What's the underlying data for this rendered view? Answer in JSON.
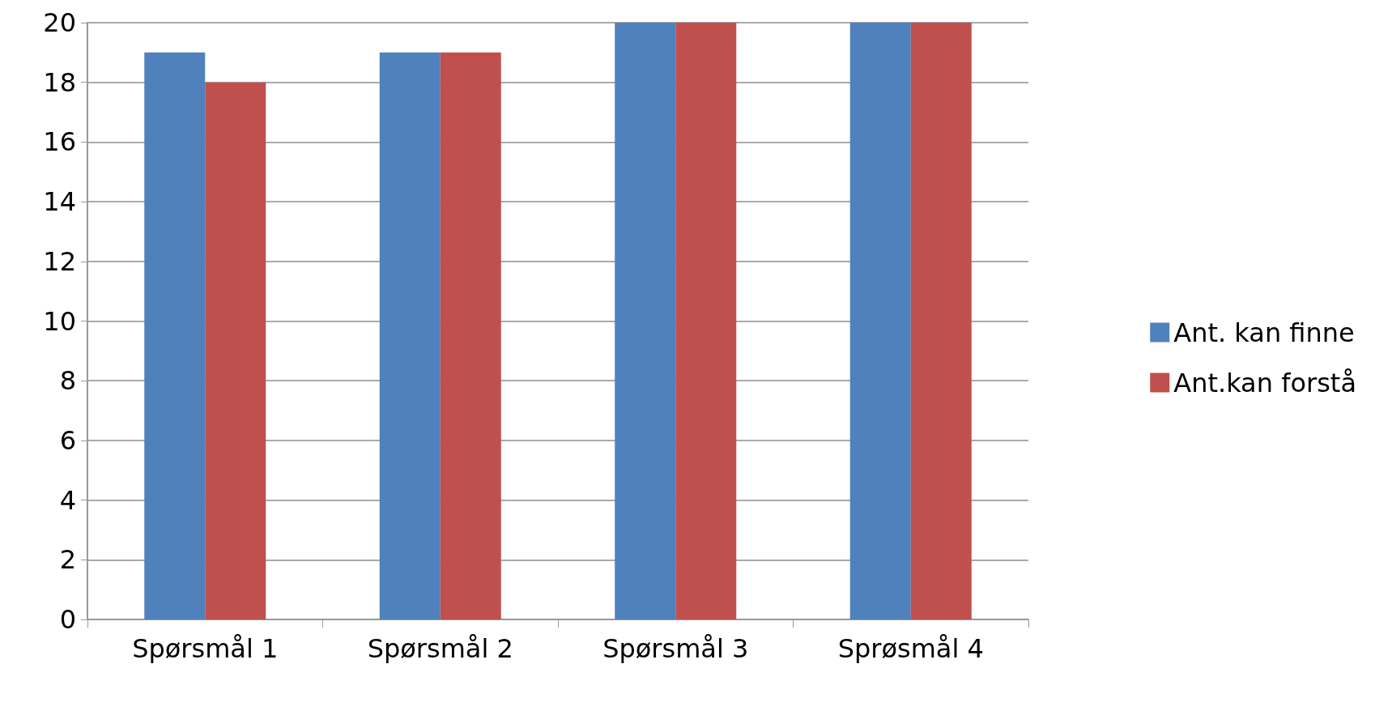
{
  "chart_data": {
    "type": "bar",
    "categories": [
      "Spørsmål 1",
      "Spørsmål 2",
      "Spørsmål 3",
      "Sprøsmål 4"
    ],
    "series": [
      {
        "name": "Ant. kan finne",
        "color": "#4f81bd",
        "values": [
          19,
          19,
          20,
          20
        ]
      },
      {
        "name": "Ant.kan forstå",
        "color": "#c0504d",
        "values": [
          18,
          19,
          20,
          20
        ]
      }
    ],
    "ylim": [
      0,
      20
    ],
    "yticks": [
      0,
      2,
      4,
      6,
      8,
      10,
      12,
      14,
      16,
      18,
      20
    ],
    "grid": "y",
    "legend": "right"
  }
}
